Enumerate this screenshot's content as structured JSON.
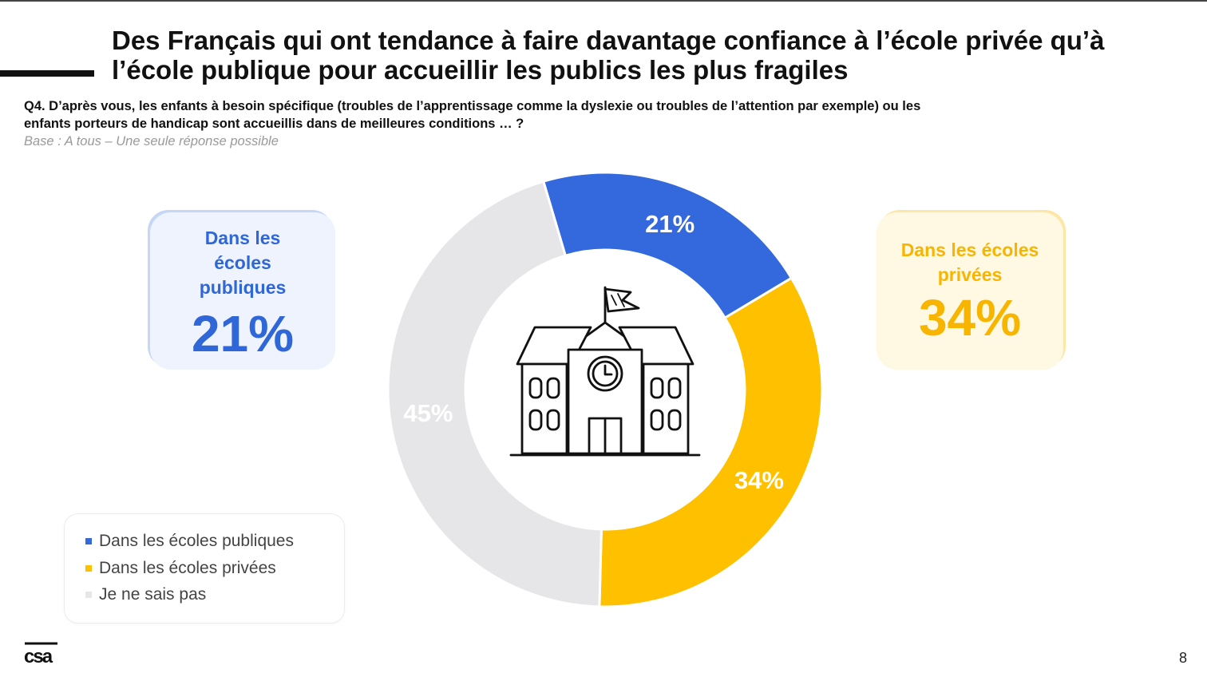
{
  "title": "Des Français qui ont tendance à faire davantage confiance à l’école privée qu’à l’école publique pour accueillir les publics les plus fragiles",
  "question": "Q4. D’après vous, les enfants à besoin spécifique (troubles de l’apprentissage comme la dyslexie ou troubles de l’attention par exemple) ou les enfants porteurs de handicap sont accueillis dans de meilleures conditions … ?",
  "base": "Base : A tous – Une seule réponse possible",
  "cards": {
    "public": {
      "label": "Dans les écoles publiques",
      "value": "21%"
    },
    "private": {
      "label": "Dans les écoles privées",
      "value": "34%"
    }
  },
  "chart_data": {
    "type": "pie",
    "donut": true,
    "categories": [
      "Dans les écoles publiques",
      "Dans les écoles privées",
      "Je ne sais pas"
    ],
    "values": [
      21,
      34,
      45
    ],
    "data_labels": [
      "21%",
      "34%",
      "45%"
    ],
    "colors": [
      "#3369dc",
      "#ffc000",
      "#e6e6e8"
    ],
    "legend_position": "bottom-left",
    "center_icon": "school-building-icon"
  },
  "logo": "csa",
  "page_number": "8"
}
